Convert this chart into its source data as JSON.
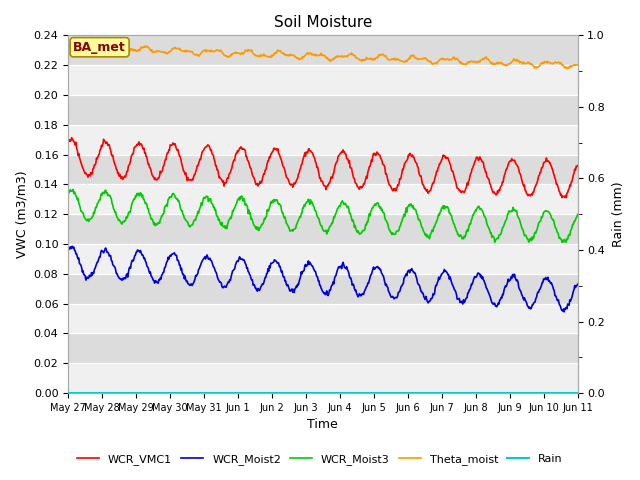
{
  "title": "Soil Moisture",
  "xlabel": "Time",
  "ylabel_left": "VWC (m3/m3)",
  "ylabel_right": "Rain (mm)",
  "ylim_left": [
    0.0,
    0.24
  ],
  "ylim_right": [
    0.0,
    1.0
  ],
  "yticks_left": [
    0.0,
    0.02,
    0.04,
    0.06,
    0.08,
    0.1,
    0.12,
    0.14,
    0.16,
    0.18,
    0.2,
    0.22,
    0.24
  ],
  "yticks_right_major": [
    0.0,
    0.2,
    0.4,
    0.6,
    0.8,
    1.0
  ],
  "yticks_right_minor": [
    0.1,
    0.3,
    0.5,
    0.7,
    0.9
  ],
  "bg_light": "#f0f0f0",
  "bg_dark": "#dcdcdc",
  "line_colors": {
    "WCR_VMC1": "#ff0000",
    "WCR_Moist2": "#0000dd",
    "WCR_Moist3": "#00cc00",
    "Theta_moist": "#ff9900",
    "Rain": "#00cccc"
  },
  "annotation_text": "BA_met",
  "annotation_fg": "#880000",
  "annotation_bg": "#ffff99",
  "annotation_border": "#aa8800",
  "title_fontsize": 11,
  "axis_fontsize": 9,
  "tick_fontsize": 8
}
